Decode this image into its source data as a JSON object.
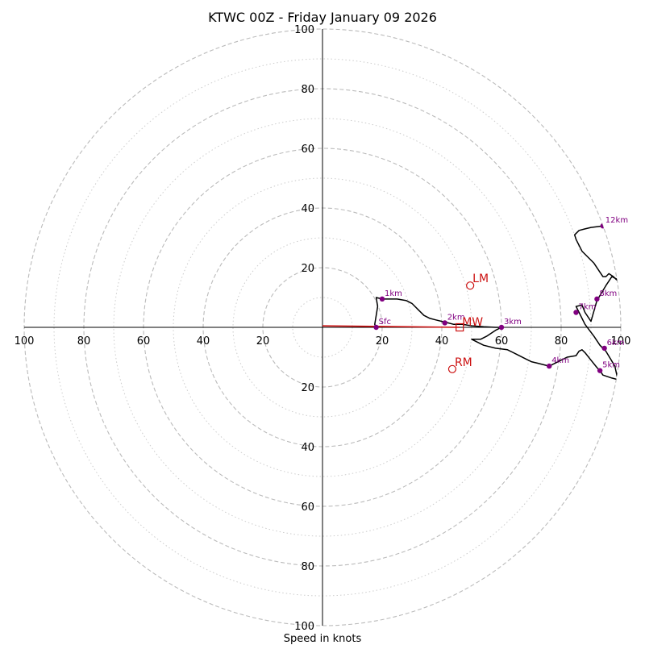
{
  "chart_data": {
    "type": "hodograph",
    "title": "KTWC 00Z - Friday January 09 2026",
    "xlabel": "Speed in knots",
    "axis_range": [
      -100,
      100
    ],
    "major_rings": [
      20,
      40,
      60,
      80,
      100
    ],
    "minor_rings": [
      10,
      30,
      50,
      70,
      90
    ],
    "x_tick_labels": [
      "100",
      "80",
      "60",
      "40",
      "20",
      "20",
      "40",
      "60",
      "80",
      "100"
    ],
    "x_tick_values": [
      -100,
      -80,
      -60,
      -40,
      -20,
      20,
      40,
      60,
      80,
      100
    ],
    "y_tick_labels": [
      "100",
      "80",
      "60",
      "40",
      "20",
      "20",
      "40",
      "60",
      "80",
      "100"
    ],
    "y_tick_values": [
      100,
      80,
      60,
      40,
      20,
      -20,
      -40,
      -60,
      -80,
      -100
    ],
    "trace": [
      [
        18,
        0
      ],
      [
        17.5,
        1
      ],
      [
        18,
        4
      ],
      [
        18.5,
        7
      ],
      [
        18,
        10
      ],
      [
        20,
        9.5
      ],
      [
        22,
        9.5
      ],
      [
        25,
        9.5
      ],
      [
        28,
        9
      ],
      [
        30,
        8
      ],
      [
        32,
        6
      ],
      [
        34,
        4
      ],
      [
        36,
        3
      ],
      [
        38,
        2.5
      ],
      [
        40,
        2
      ],
      [
        42,
        1.5
      ],
      [
        44,
        1
      ],
      [
        47,
        1
      ],
      [
        50,
        0.5
      ],
      [
        54,
        0.2
      ],
      [
        58,
        0
      ],
      [
        60,
        0
      ],
      [
        58,
        -1
      ],
      [
        55,
        -3
      ],
      [
        53,
        -4
      ],
      [
        50,
        -4
      ],
      [
        54,
        -6
      ],
      [
        58,
        -7
      ],
      [
        62,
        -7.5
      ],
      [
        65,
        -9
      ],
      [
        68,
        -10.5
      ],
      [
        70,
        -11.5
      ],
      [
        72,
        -12
      ],
      [
        76,
        -13
      ],
      [
        78,
        -12
      ],
      [
        80,
        -11
      ],
      [
        82,
        -10
      ],
      [
        85,
        -9.5
      ],
      [
        86,
        -8
      ],
      [
        87,
        -7.5
      ],
      [
        88,
        -8.5
      ],
      [
        90,
        -11
      ],
      [
        92,
        -13.5
      ],
      [
        93,
        -14.5
      ],
      [
        94,
        -16
      ],
      [
        97,
        -17
      ],
      [
        99,
        -17.5
      ],
      [
        98,
        -13
      ],
      [
        95,
        -8
      ],
      [
        93,
        -6
      ],
      [
        91,
        -3
      ],
      [
        88,
        1
      ],
      [
        86,
        5
      ],
      [
        85,
        7
      ],
      [
        87,
        7.5
      ],
      [
        88,
        5
      ],
      [
        90,
        2
      ],
      [
        92,
        9
      ],
      [
        95,
        14
      ],
      [
        97,
        17
      ],
      [
        99,
        16
      ],
      [
        100,
        15
      ],
      [
        98.5,
        16
      ],
      [
        97.5,
        17
      ],
      [
        96,
        18
      ],
      [
        95,
        17
      ],
      [
        94,
        17
      ],
      [
        93,
        18.5
      ],
      [
        91,
        21.5
      ],
      [
        87,
        25.5
      ],
      [
        85,
        29.5
      ],
      [
        84.5,
        31
      ],
      [
        86,
        32.5
      ],
      [
        88,
        33
      ],
      [
        90,
        33.5
      ],
      [
        94,
        34
      ]
    ],
    "height_points": [
      {
        "label": "Sfc",
        "u": 18,
        "v": 0
      },
      {
        "label": "1km",
        "u": 20,
        "v": 9.5
      },
      {
        "label": "2km",
        "u": 41,
        "v": 1.5
      },
      {
        "label": "3km",
        "u": 60,
        "v": 0
      },
      {
        "label": "4km",
        "u": 76,
        "v": -13
      },
      {
        "label": "5km",
        "u": 93,
        "v": -14.5
      },
      {
        "label": "6km",
        "u": 94.5,
        "v": -7
      },
      {
        "label": "7km",
        "u": 85,
        "v": 5
      },
      {
        "label": "8km",
        "u": 92,
        "v": 9.5
      },
      {
        "label": "12km",
        "u": 94,
        "v": 34
      }
    ],
    "storm_motion": {
      "LM": {
        "label": "LM",
        "u": 49.5,
        "v": 14
      },
      "RM": {
        "label": "RM",
        "u": 43.5,
        "v": -14
      },
      "MW": {
        "label": "MW",
        "u": 46,
        "v": 0
      }
    },
    "shear_vector": {
      "from": [
        0,
        0.5
      ],
      "to": [
        46,
        0
      ]
    }
  },
  "colors": {
    "trace": "#000000",
    "height_point": "#800080",
    "motion": "#cc1111",
    "ring_major": "#bbbbbb",
    "ring_minor": "#cccccc"
  }
}
